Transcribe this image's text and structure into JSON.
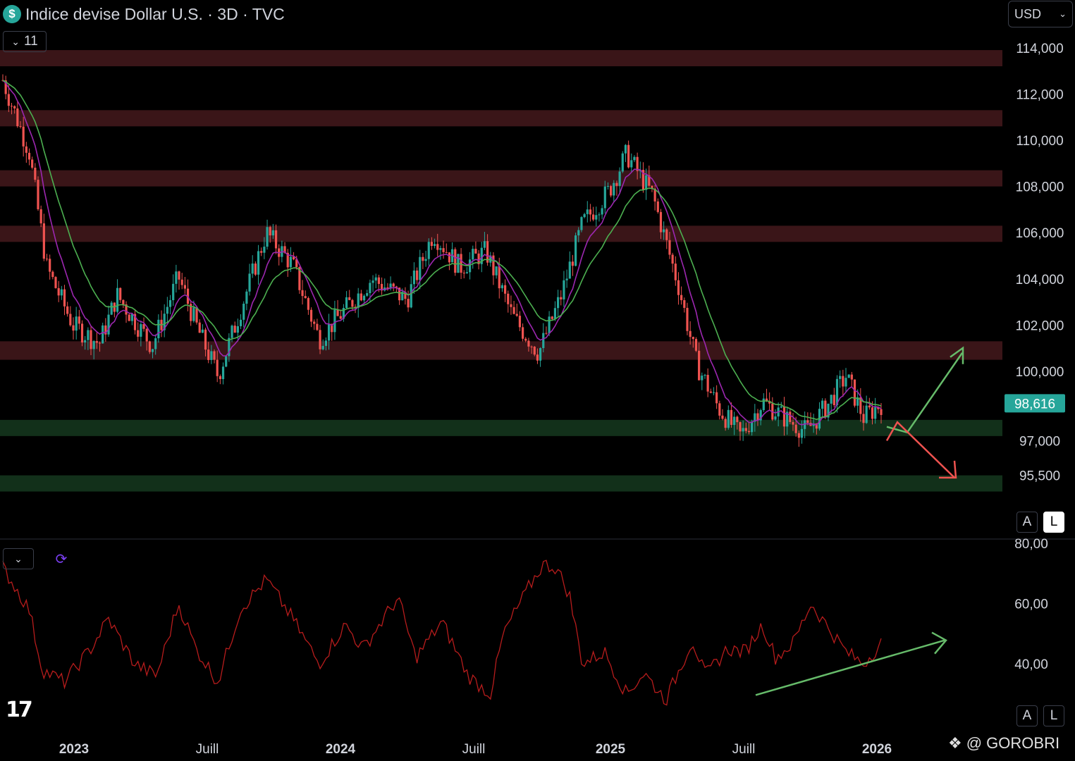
{
  "header": {
    "currency_icon": "dollar-icon",
    "currency_symbol": "$",
    "title": "Indice devise Dollar U.S. · 3D · TVC",
    "collapse_count": "11",
    "currency_select": "USD"
  },
  "scale_buttons": {
    "auto": "A",
    "log": "L"
  },
  "watermark": "@ GOROBRI",
  "logo": "17",
  "colors": {
    "up": "#26a69a",
    "down": "#ef5350",
    "ma_fast": "#9c27b0",
    "ma_slow": "#4caf50",
    "resistance_zone": "#3a1518",
    "support_zone": "#12301a",
    "rsi_line": "#b71c1c",
    "arrow_up": "#66bb6a",
    "arrow_down": "#ef5350",
    "price_label": "#26a69a"
  },
  "chart_data": [
    {
      "type": "candlestick",
      "title": "Indice devise Dollar U.S. · 3D · TVC",
      "price_axis_ticks": [
        "114,000",
        "112,000",
        "110,000",
        "108,000",
        "106,000",
        "104,000",
        "102,000",
        "100,000",
        "97,000",
        "95,500"
      ],
      "last_price": "98,616",
      "time_axis_ticks": [
        {
          "label": "2023",
          "bold": true
        },
        {
          "label": "Juill",
          "bold": false
        },
        {
          "label": "2024",
          "bold": true
        },
        {
          "label": "Juill",
          "bold": false
        },
        {
          "label": "2025",
          "bold": true
        },
        {
          "label": "Juill",
          "bold": false
        },
        {
          "label": "2026",
          "bold": true
        }
      ],
      "resistance_zones": [
        [
          113.2,
          113.9
        ],
        [
          110.6,
          111.3
        ],
        [
          108.0,
          108.7
        ],
        [
          105.6,
          106.3
        ],
        [
          100.5,
          101.3
        ]
      ],
      "support_zones": [
        [
          97.2,
          97.9
        ],
        [
          94.8,
          95.5
        ]
      ],
      "price_path": [
        [
          0,
          112.6
        ],
        [
          0.03,
          109.5
        ],
        [
          0.05,
          104.5
        ],
        [
          0.08,
          102.0
        ],
        [
          0.11,
          101.2
        ],
        [
          0.13,
          103.3
        ],
        [
          0.15,
          102.2
        ],
        [
          0.17,
          101.1
        ],
        [
          0.2,
          104.1
        ],
        [
          0.22,
          102.0
        ],
        [
          0.245,
          99.8
        ],
        [
          0.27,
          102.6
        ],
        [
          0.3,
          106.0
        ],
        [
          0.33,
          104.6
        ],
        [
          0.36,
          101.4
        ],
        [
          0.39,
          102.7
        ],
        [
          0.42,
          104.0
        ],
        [
          0.46,
          103.1
        ],
        [
          0.49,
          106.0
        ],
        [
          0.52,
          104.5
        ],
        [
          0.55,
          105.2
        ],
        [
          0.58,
          102.4
        ],
        [
          0.61,
          100.8
        ],
        [
          0.635,
          103.2
        ],
        [
          0.66,
          106.4
        ],
        [
          0.69,
          107.8
        ],
        [
          0.71,
          109.4
        ],
        [
          0.74,
          107.6
        ],
        [
          0.77,
          103.6
        ],
        [
          0.79,
          100.3
        ],
        [
          0.815,
          98.4
        ],
        [
          0.84,
          97.2
        ],
        [
          0.865,
          98.7
        ],
        [
          0.89,
          98.0
        ],
        [
          0.915,
          97.4
        ],
        [
          0.94,
          98.6
        ],
        [
          0.96,
          99.8
        ],
        [
          0.98,
          98.0
        ],
        [
          1.0,
          98.6
        ]
      ],
      "projection_arrows": [
        {
          "direction": "up",
          "from": [
            97.6
          ],
          "to": [
            100.8
          ]
        },
        {
          "direction": "down",
          "from": [
            97.6
          ],
          "to": [
            95.4
          ]
        }
      ]
    },
    {
      "type": "line",
      "title": "",
      "rsi_axis_ticks": [
        "80,00",
        "60,00",
        "40,00"
      ],
      "ylim": [
        20,
        80
      ],
      "rsi_path": [
        [
          0,
          72
        ],
        [
          0.03,
          58
        ],
        [
          0.045,
          38
        ],
        [
          0.07,
          34
        ],
        [
          0.1,
          45
        ],
        [
          0.12,
          55
        ],
        [
          0.15,
          40
        ],
        [
          0.175,
          36
        ],
        [
          0.2,
          60
        ],
        [
          0.22,
          45
        ],
        [
          0.245,
          34
        ],
        [
          0.27,
          58
        ],
        [
          0.3,
          68
        ],
        [
          0.33,
          55
        ],
        [
          0.36,
          40
        ],
        [
          0.39,
          53
        ],
        [
          0.41,
          45
        ],
        [
          0.45,
          62
        ],
        [
          0.47,
          42
        ],
        [
          0.5,
          54
        ],
        [
          0.53,
          36
        ],
        [
          0.555,
          30
        ],
        [
          0.57,
          50
        ],
        [
          0.6,
          66
        ],
        [
          0.615,
          73
        ],
        [
          0.63,
          72
        ],
        [
          0.645,
          63
        ],
        [
          0.66,
          40
        ],
        [
          0.685,
          44
        ],
        [
          0.71,
          30
        ],
        [
          0.73,
          37
        ],
        [
          0.755,
          28
        ],
        [
          0.77,
          38
        ],
        [
          0.785,
          48
        ],
        [
          0.8,
          36
        ],
        [
          0.825,
          45
        ],
        [
          0.845,
          44
        ],
        [
          0.865,
          53
        ],
        [
          0.88,
          42
        ],
        [
          0.9,
          47
        ],
        [
          0.92,
          60
        ],
        [
          0.94,
          52
        ],
        [
          0.96,
          44
        ],
        [
          0.98,
          40
        ],
        [
          1.0,
          47
        ]
      ],
      "trend_arrow": {
        "from": [
          0.0,
          32
        ],
        "to": [
          1.0,
          49
        ]
      }
    }
  ]
}
